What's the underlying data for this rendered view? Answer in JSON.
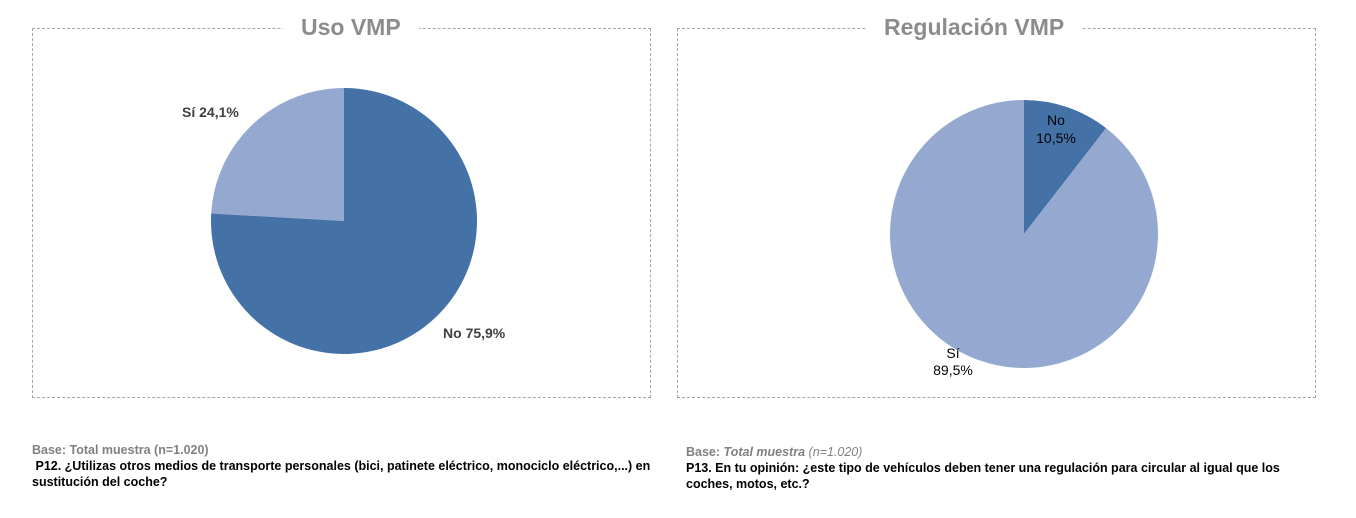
{
  "colors": {
    "dark_blue": "#4472a7",
    "light_blue": "#95a9d0",
    "title_gray": "#8c8c8c",
    "border_gray": "#a6a6a6"
  },
  "chart_data": [
    {
      "type": "pie",
      "title": "Uso VMP",
      "slices": [
        {
          "label": "Sí",
          "value": 24.1,
          "value_label": "24,1%",
          "color": "#95a9d0"
        },
        {
          "label": "No",
          "value": 75.9,
          "value_label": "75,9%",
          "color": "#4472a7"
        }
      ]
    },
    {
      "type": "pie",
      "title": "Regulación VMP",
      "slices": [
        {
          "label": "No",
          "value": 10.5,
          "value_label": "10,5%",
          "color": "#4472a7"
        },
        {
          "label": "Sí",
          "value": 89.5,
          "value_label": "89,5%",
          "color": "#95a9d0"
        }
      ]
    }
  ],
  "footers": [
    {
      "base_label": "Base:",
      "base_value": "Total muestra (n=1.020)",
      "question": " P12. ¿Utilizas otros medios de transporte personales (bici, patinete eléctrico, monociclo eléctrico,...) en sustitución del coche?"
    },
    {
      "base_label": "Base:",
      "base_value": "Total muestra",
      "base_n": "(n=1.020)",
      "question": "P13. En tu opinión: ¿este tipo de vehículos deben tener una regulación para circular al igual que los coches, motos, etc.?"
    }
  ]
}
